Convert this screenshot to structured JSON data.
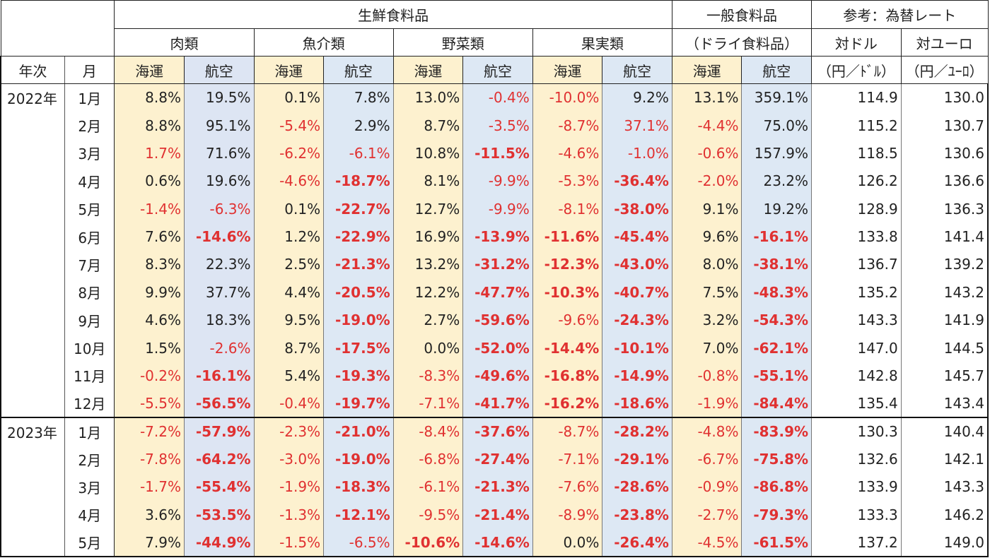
{
  "header": {
    "group_fresh": "生鮮食料品",
    "group_general": "一般食料品",
    "group_general_sub": "（ドライ食料品）",
    "group_ref": "参考：為替レート",
    "cat_meat": "肉類",
    "cat_fish": "魚介類",
    "cat_veg": "野菜類",
    "cat_fruit": "果実類",
    "fx_usd": "対ドル",
    "fx_eur": "対ユーロ",
    "col_year": "年次",
    "col_month": "月",
    "sea": "海運",
    "air": "航空",
    "fx_usd_unit": "（円／ﾄﾞﾙ）",
    "fx_eur_unit": "（円／ﾕｰﾛ）"
  },
  "rows": [
    {
      "year": "2022年",
      "month": "1月",
      "c": [
        "8.8%",
        "19.5%",
        "0.1%",
        "7.8%",
        "13.0%",
        "-0.4%",
        "-10.0%",
        "9.2%",
        "13.1%",
        "359.1%",
        "114.9",
        "130.0"
      ],
      "s": [
        "",
        "",
        "",
        "",
        "",
        "n",
        "n",
        "",
        "",
        "",
        "",
        ""
      ]
    },
    {
      "year": "",
      "month": "2月",
      "c": [
        "8.8%",
        "95.1%",
        "-5.4%",
        "2.9%",
        "8.7%",
        "-3.5%",
        "-8.7%",
        "37.1%",
        "-4.4%",
        "75.0%",
        "115.2",
        "130.7"
      ],
      "s": [
        "",
        "",
        "n",
        "",
        "",
        "n",
        "n",
        "n",
        "n",
        "",
        "",
        ""
      ]
    },
    {
      "year": "",
      "month": "3月",
      "c": [
        "1.7%",
        "71.6%",
        "-6.2%",
        "-6.1%",
        "10.8%",
        "-11.5%",
        "-4.6%",
        "-1.0%",
        "-0.6%",
        "157.9%",
        "118.5",
        "130.6"
      ],
      "s": [
        "n",
        "",
        "n",
        "n",
        "",
        "b",
        "n",
        "n",
        "n",
        "",
        "",
        ""
      ]
    },
    {
      "year": "",
      "month": "4月",
      "c": [
        "0.6%",
        "19.6%",
        "-4.6%",
        "-18.7%",
        "8.1%",
        "-9.9%",
        "-5.3%",
        "-36.4%",
        "-2.0%",
        "23.2%",
        "126.2",
        "136.6"
      ],
      "s": [
        "",
        "",
        "n",
        "b",
        "",
        "n",
        "n",
        "b",
        "n",
        "",
        "",
        ""
      ]
    },
    {
      "year": "",
      "month": "5月",
      "c": [
        "-1.4%",
        "-6.3%",
        "0.1%",
        "-22.7%",
        "12.7%",
        "-9.9%",
        "-8.1%",
        "-38.0%",
        "9.1%",
        "19.2%",
        "128.9",
        "136.3"
      ],
      "s": [
        "n",
        "n",
        "",
        "b",
        "",
        "n",
        "n",
        "b",
        "",
        "",
        "",
        ""
      ]
    },
    {
      "year": "",
      "month": "6月",
      "c": [
        "7.6%",
        "-14.6%",
        "1.2%",
        "-22.9%",
        "16.9%",
        "-13.9%",
        "-11.6%",
        "-45.4%",
        "9.6%",
        "-16.1%",
        "133.8",
        "141.4"
      ],
      "s": [
        "",
        "b",
        "",
        "b",
        "",
        "b",
        "b",
        "b",
        "",
        "b",
        "",
        ""
      ]
    },
    {
      "year": "",
      "month": "7月",
      "c": [
        "8.3%",
        "22.3%",
        "2.5%",
        "-21.3%",
        "13.2%",
        "-31.2%",
        "-12.3%",
        "-43.0%",
        "8.0%",
        "-38.1%",
        "136.7",
        "139.2"
      ],
      "s": [
        "",
        "",
        "",
        "b",
        "",
        "b",
        "b",
        "b",
        "",
        "b",
        "",
        ""
      ]
    },
    {
      "year": "",
      "month": "8月",
      "c": [
        "9.9%",
        "37.7%",
        "4.4%",
        "-20.5%",
        "12.2%",
        "-47.7%",
        "-10.3%",
        "-40.7%",
        "7.5%",
        "-48.3%",
        "135.2",
        "143.2"
      ],
      "s": [
        "",
        "",
        "",
        "b",
        "",
        "b",
        "b",
        "b",
        "",
        "b",
        "",
        ""
      ]
    },
    {
      "year": "",
      "month": "9月",
      "c": [
        "4.6%",
        "18.3%",
        "9.5%",
        "-19.0%",
        "2.7%",
        "-59.6%",
        "-9.6%",
        "-24.3%",
        "3.2%",
        "-54.3%",
        "143.3",
        "141.9"
      ],
      "s": [
        "",
        "",
        "",
        "b",
        "",
        "b",
        "n",
        "b",
        "",
        "b",
        "",
        ""
      ]
    },
    {
      "year": "",
      "month": "10月",
      "c": [
        "1.5%",
        "-2.6%",
        "8.7%",
        "-17.5%",
        "0.0%",
        "-52.0%",
        "-14.4%",
        "-10.1%",
        "7.0%",
        "-62.1%",
        "147.0",
        "144.5"
      ],
      "s": [
        "",
        "n",
        "",
        "b",
        "",
        "b",
        "b",
        "b",
        "",
        "b",
        "",
        ""
      ]
    },
    {
      "year": "",
      "month": "11月",
      "c": [
        "-0.2%",
        "-16.1%",
        "5.4%",
        "-19.3%",
        "-8.3%",
        "-49.6%",
        "-16.8%",
        "-14.9%",
        "-0.8%",
        "-55.1%",
        "142.8",
        "145.7"
      ],
      "s": [
        "n",
        "b",
        "",
        "b",
        "n",
        "b",
        "b",
        "b",
        "n",
        "b",
        "",
        ""
      ]
    },
    {
      "year": "",
      "month": "12月",
      "c": [
        "-5.5%",
        "-56.5%",
        "-0.4%",
        "-19.7%",
        "-7.1%",
        "-41.7%",
        "-16.2%",
        "-18.6%",
        "-1.9%",
        "-84.4%",
        "135.4",
        "143.4"
      ],
      "s": [
        "n",
        "b",
        "n",
        "b",
        "n",
        "b",
        "b",
        "b",
        "n",
        "b",
        "",
        ""
      ]
    },
    {
      "year": "2023年",
      "month": "1月",
      "c": [
        "-7.2%",
        "-57.9%",
        "-2.3%",
        "-21.0%",
        "-8.4%",
        "-37.6%",
        "-8.7%",
        "-28.2%",
        "-4.8%",
        "-83.9%",
        "130.3",
        "140.4"
      ],
      "s": [
        "n",
        "b",
        "n",
        "b",
        "n",
        "b",
        "n",
        "b",
        "n",
        "b",
        "",
        ""
      ]
    },
    {
      "year": "",
      "month": "2月",
      "c": [
        "-7.8%",
        "-64.2%",
        "-3.0%",
        "-19.0%",
        "-6.8%",
        "-27.4%",
        "-7.1%",
        "-29.1%",
        "-6.7%",
        "-75.8%",
        "132.6",
        "142.1"
      ],
      "s": [
        "n",
        "b",
        "n",
        "b",
        "n",
        "b",
        "n",
        "b",
        "n",
        "b",
        "",
        ""
      ]
    },
    {
      "year": "",
      "month": "3月",
      "c": [
        "-1.7%",
        "-55.4%",
        "-1.9%",
        "-18.3%",
        "-6.1%",
        "-21.3%",
        "-7.6%",
        "-28.6%",
        "-0.9%",
        "-86.8%",
        "133.9",
        "143.3"
      ],
      "s": [
        "n",
        "b",
        "n",
        "b",
        "n",
        "b",
        "n",
        "b",
        "n",
        "b",
        "",
        ""
      ]
    },
    {
      "year": "",
      "month": "4月",
      "c": [
        "3.6%",
        "-53.5%",
        "-1.3%",
        "-12.1%",
        "-9.5%",
        "-21.4%",
        "-8.9%",
        "-23.8%",
        "-2.7%",
        "-79.3%",
        "133.3",
        "146.2"
      ],
      "s": [
        "",
        "b",
        "n",
        "b",
        "n",
        "b",
        "n",
        "b",
        "n",
        "b",
        "",
        ""
      ]
    },
    {
      "year": "",
      "month": "5月",
      "c": [
        "7.9%",
        "-44.9%",
        "-1.5%",
        "-6.5%",
        "-10.6%",
        "-14.6%",
        "0.0%",
        "-26.4%",
        "-4.5%",
        "-61.5%",
        "137.2",
        "149.0"
      ],
      "s": [
        "",
        "b",
        "n",
        "n",
        "b",
        "b",
        "",
        "b",
        "n",
        "b",
        "",
        ""
      ]
    }
  ],
  "colors": {
    "sea_bg": "#fdf1cf",
    "air_meat_bg": "#dde5f3",
    "air_other_bg": "#dde8f4",
    "negative_text": "#e03131",
    "text": "#222222"
  }
}
